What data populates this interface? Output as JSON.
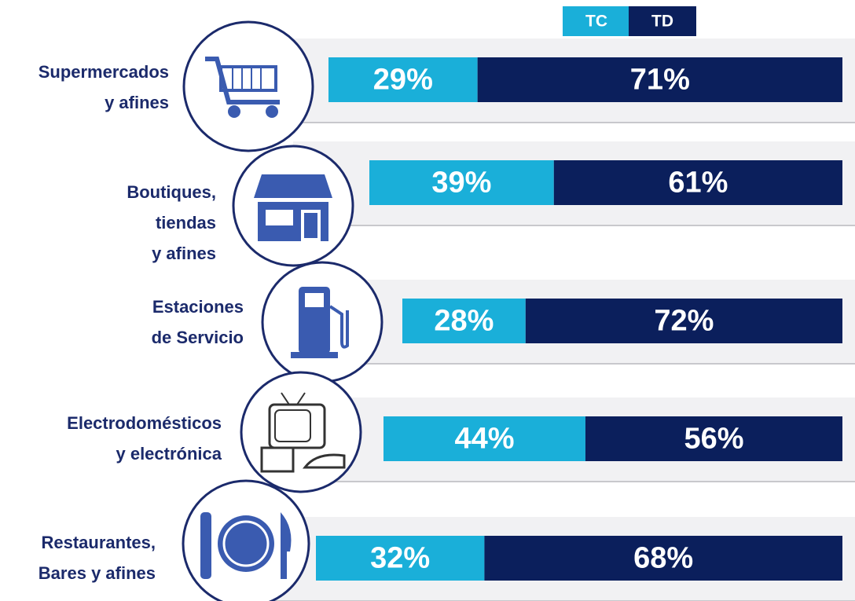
{
  "chart_data": {
    "type": "stacked_bar_horizontal",
    "categories": [
      [
        "Supermercados",
        "y afines"
      ],
      [
        "Boutiques,",
        "tiendas",
        "y afines"
      ],
      [
        "Estaciones",
        "de Servicio"
      ],
      [
        "Electrodomésticos",
        "y electrónica"
      ],
      [
        "Restaurantes,",
        "Bares y afines"
      ]
    ],
    "series": [
      {
        "name": "TC",
        "color": "#1aafd9",
        "values": [
          29,
          39,
          28,
          44,
          32
        ],
        "value_labels": [
          "29%",
          "39%",
          "28%",
          "44%",
          "32%"
        ]
      },
      {
        "name": "TD",
        "color": "#0b1f5c",
        "values": [
          71,
          61,
          72,
          56,
          68
        ],
        "value_labels": [
          "71%",
          "61%",
          "72%",
          "56%",
          "68%"
        ]
      }
    ]
  }
}
